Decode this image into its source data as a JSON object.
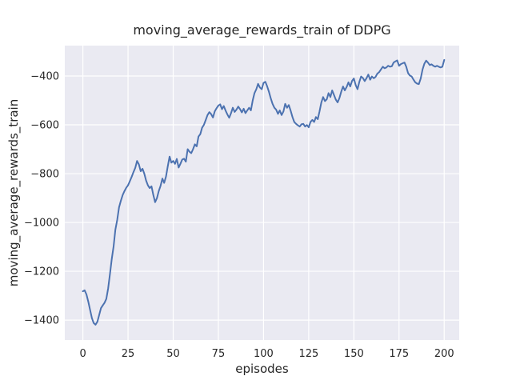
{
  "figure": {
    "background_color": "#ffffff",
    "axes_background_color": "#eaeaf2",
    "grid_color": "#ffffff",
    "line_color": "#4c72b0",
    "text_color": "#262626"
  },
  "chart_data": {
    "type": "line",
    "title": "moving_average_rewards_train of DDPG",
    "xlabel": "episodes",
    "ylabel": "moving_average_rewards_train",
    "grid": true,
    "legend_position": "none",
    "xlim": [
      -10,
      208.3
    ],
    "ylim": [
      -1481.6,
      -275.4
    ],
    "xticks": [
      0,
      25,
      50,
      75,
      100,
      125,
      150,
      175,
      200
    ],
    "xtick_labels": [
      "0",
      "25",
      "50",
      "75",
      "100",
      "125",
      "150",
      "175",
      "200"
    ],
    "yticks": [
      -400,
      -600,
      -800,
      -1000,
      -1200,
      -1400
    ],
    "ytick_labels": [
      "−400",
      "−600",
      "−800",
      "−1000",
      "−1200",
      "−1400"
    ],
    "series": [
      {
        "name": "moving_average_rewards_train",
        "x_start": 0,
        "x_step": 1,
        "values": [
          -1282,
          -1278,
          -1295,
          -1325,
          -1358,
          -1392,
          -1412,
          -1419,
          -1407,
          -1380,
          -1351,
          -1340,
          -1329,
          -1313,
          -1270,
          -1210,
          -1150,
          -1098,
          -1030,
          -990,
          -938,
          -912,
          -888,
          -872,
          -858,
          -848,
          -831,
          -813,
          -794,
          -776,
          -748,
          -762,
          -790,
          -780,
          -800,
          -828,
          -848,
          -859,
          -852,
          -888,
          -917,
          -900,
          -872,
          -850,
          -820,
          -838,
          -812,
          -770,
          -730,
          -755,
          -748,
          -760,
          -740,
          -775,
          -760,
          -742,
          -739,
          -751,
          -700,
          -710,
          -716,
          -700,
          -680,
          -688,
          -648,
          -638,
          -612,
          -600,
          -580,
          -560,
          -548,
          -556,
          -570,
          -545,
          -532,
          -521,
          -516,
          -536,
          -523,
          -542,
          -558,
          -571,
          -552,
          -530,
          -547,
          -538,
          -525,
          -536,
          -549,
          -534,
          -552,
          -541,
          -530,
          -541,
          -500,
          -470,
          -454,
          -432,
          -447,
          -454,
          -428,
          -424,
          -442,
          -465,
          -492,
          -514,
          -530,
          -538,
          -555,
          -541,
          -560,
          -545,
          -514,
          -530,
          -519,
          -542,
          -568,
          -588,
          -596,
          -602,
          -607,
          -598,
          -596,
          -607,
          -601,
          -610,
          -588,
          -580,
          -588,
          -568,
          -577,
          -545,
          -508,
          -486,
          -503,
          -495,
          -470,
          -486,
          -459,
          -478,
          -497,
          -508,
          -490,
          -465,
          -443,
          -459,
          -445,
          -426,
          -443,
          -420,
          -410,
          -437,
          -454,
          -425,
          -402,
          -408,
          -421,
          -409,
          -394,
          -415,
          -402,
          -409,
          -404,
          -390,
          -384,
          -373,
          -362,
          -368,
          -365,
          -358,
          -362,
          -360,
          -345,
          -340,
          -336,
          -358,
          -351,
          -348,
          -345,
          -362,
          -388,
          -398,
          -402,
          -415,
          -426,
          -431,
          -433,
          -410,
          -373,
          -350,
          -337,
          -345,
          -355,
          -352,
          -358,
          -362,
          -358,
          -362,
          -365,
          -362,
          -334
        ]
      }
    ]
  }
}
